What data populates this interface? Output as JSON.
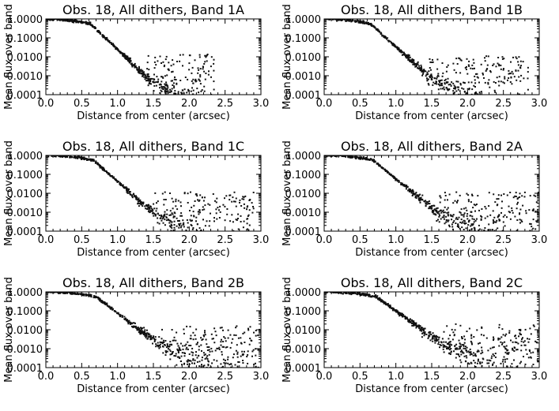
{
  "figure": {
    "layout": "3 rows x 2 columns"
  },
  "chart_data": [
    {
      "type": "scatter",
      "title": "Obs. 18, All dithers, Band 1A",
      "xlabel": "Distance from center (arcsec)",
      "ylabel": "Mean flux over band",
      "xlim": [
        0,
        3
      ],
      "ylim": [
        0.0001,
        1.0
      ],
      "yscale": "log",
      "xticks": [
        "0.0",
        "0.5",
        "1.0",
        "1.5",
        "2.0",
        "2.5",
        "3.0"
      ],
      "yticks": [
        "0.0001",
        "0.0010",
        "0.0100",
        "0.1000",
        "1.0000"
      ],
      "profile": {
        "core": 0.62,
        "decline_per_arcsec": 3.6,
        "flatten_from": 1.4,
        "max_distance": 2.35,
        "noise_floor": 0.00035
      }
    },
    {
      "type": "scatter",
      "title": "Obs. 18, All dithers, Band 1B",
      "xlabel": "Distance from center (arcsec)",
      "ylabel": "Mean flux over band",
      "xlim": [
        0,
        3
      ],
      "ylim": [
        0.0001,
        1.0
      ],
      "yscale": "log",
      "xticks": [
        "0.0",
        "0.5",
        "1.0",
        "1.5",
        "2.0",
        "2.5",
        "3.0"
      ],
      "yticks": [
        "0.0001",
        "0.0010",
        "0.0100",
        "0.1000",
        "1.0000"
      ],
      "profile": {
        "core": 0.64,
        "decline_per_arcsec": 3.4,
        "flatten_from": 1.45,
        "max_distance": 2.85,
        "noise_floor": 0.0003
      }
    },
    {
      "type": "scatter",
      "title": "Obs. 18, All dithers, Band 1C",
      "xlabel": "Distance from center (arcsec)",
      "ylabel": "Mean flux over band",
      "xlim": [
        0,
        3
      ],
      "ylim": [
        0.0001,
        1.0
      ],
      "yscale": "log",
      "xticks": [
        "0.0",
        "0.5",
        "1.0",
        "1.5",
        "2.0",
        "2.5",
        "3.0"
      ],
      "yticks": [
        "0.0001",
        "0.0010",
        "0.0100",
        "0.1000",
        "1.0000"
      ],
      "profile": {
        "core": 0.66,
        "decline_per_arcsec": 3.3,
        "flatten_from": 1.5,
        "max_distance": 2.9,
        "noise_floor": 0.0003
      }
    },
    {
      "type": "scatter",
      "title": "Obs. 18, All dithers, Band 2A",
      "xlabel": "Distance from center (arcsec)",
      "ylabel": "Mean flux over band",
      "xlim": [
        0,
        3
      ],
      "ylim": [
        0.0001,
        1.0
      ],
      "yscale": "log",
      "xticks": [
        "0.0",
        "0.5",
        "1.0",
        "1.5",
        "2.0",
        "2.5",
        "3.0"
      ],
      "yticks": [
        "0.0001",
        "0.0010",
        "0.0100",
        "0.1000",
        "1.0000"
      ],
      "profile": {
        "core": 0.68,
        "decline_per_arcsec": 3.1,
        "flatten_from": 1.55,
        "max_distance": 3.0,
        "noise_floor": 0.0003
      }
    },
    {
      "type": "scatter",
      "title": "Obs. 18, All dithers, Band 2B",
      "xlabel": "Distance from center (arcsec)",
      "ylabel": "Mean flux over band",
      "xlim": [
        0,
        3
      ],
      "ylim": [
        0.0001,
        1.0
      ],
      "yscale": "log",
      "xticks": [
        "0.0",
        "0.5",
        "1.0",
        "1.5",
        "2.0",
        "2.5",
        "3.0"
      ],
      "yticks": [
        "0.0001",
        "0.0010",
        "0.0100",
        "0.1000",
        "1.0000"
      ],
      "profile": {
        "core": 0.7,
        "decline_per_arcsec": 2.9,
        "flatten_from": 1.6,
        "max_distance": 3.0,
        "noise_floor": 0.0004
      }
    },
    {
      "type": "scatter",
      "title": "Obs. 18, All dithers, Band 2C",
      "xlabel": "Distance from center (arcsec)",
      "ylabel": "Mean flux over band",
      "xlim": [
        0,
        3
      ],
      "ylim": [
        0.0001,
        1.0
      ],
      "yscale": "log",
      "xticks": [
        "0.0",
        "0.5",
        "1.0",
        "1.5",
        "2.0",
        "2.5",
        "3.0"
      ],
      "yticks": [
        "0.0001",
        "0.0010",
        "0.0100",
        "0.1000",
        "1.0000"
      ],
      "profile": {
        "core": 0.72,
        "decline_per_arcsec": 2.7,
        "flatten_from": 1.65,
        "max_distance": 3.0,
        "noise_floor": 0.0005
      }
    }
  ],
  "colors": {
    "axis": "#000000",
    "points": "#111111",
    "background": "#ffffff"
  }
}
